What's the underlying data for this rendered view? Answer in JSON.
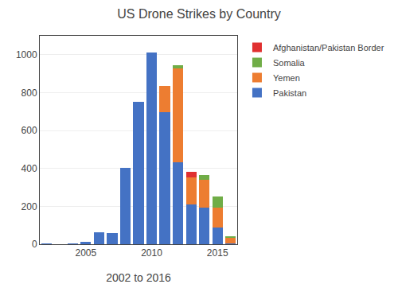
{
  "chart_data": {
    "type": "bar",
    "title": "US Drone Strikes by Country",
    "xlabel": "2002 to 2016",
    "x": [
      2002,
      2003,
      2004,
      2005,
      2006,
      2007,
      2008,
      2009,
      2010,
      2011,
      2012,
      2013,
      2014,
      2015,
      2016
    ],
    "series": [
      {
        "name": "Pakistan",
        "color": "#4472c4",
        "values": [
          3,
          0,
          1,
          13,
          65,
          60,
          402,
          751,
          1011,
          699,
          432,
          211,
          193,
          88,
          4
        ]
      },
      {
        "name": "Yemen",
        "color": "#ed7d31",
        "values": [
          0,
          0,
          0,
          0,
          0,
          0,
          0,
          0,
          0,
          136,
          497,
          143,
          147,
          107,
          31
        ]
      },
      {
        "name": "Somalia",
        "color": "#70ad47",
        "values": [
          0,
          0,
          0,
          0,
          0,
          0,
          0,
          0,
          0,
          0,
          16,
          0,
          25,
          55,
          8
        ]
      },
      {
        "name": "Afghanistan/Pakistan Border",
        "color": "#e03030",
        "values": [
          0,
          0,
          0,
          0,
          0,
          0,
          0,
          0,
          0,
          0,
          0,
          26,
          0,
          0,
          0
        ]
      }
    ],
    "stacked": true,
    "xlim": [
      2001.5,
      2016.5
    ],
    "xticks": [
      2005,
      2010,
      2015
    ],
    "ylim": [
      0,
      1100
    ],
    "yticks": [
      0,
      200,
      400,
      600,
      800,
      1000
    ],
    "grid": true,
    "legend": "right"
  }
}
